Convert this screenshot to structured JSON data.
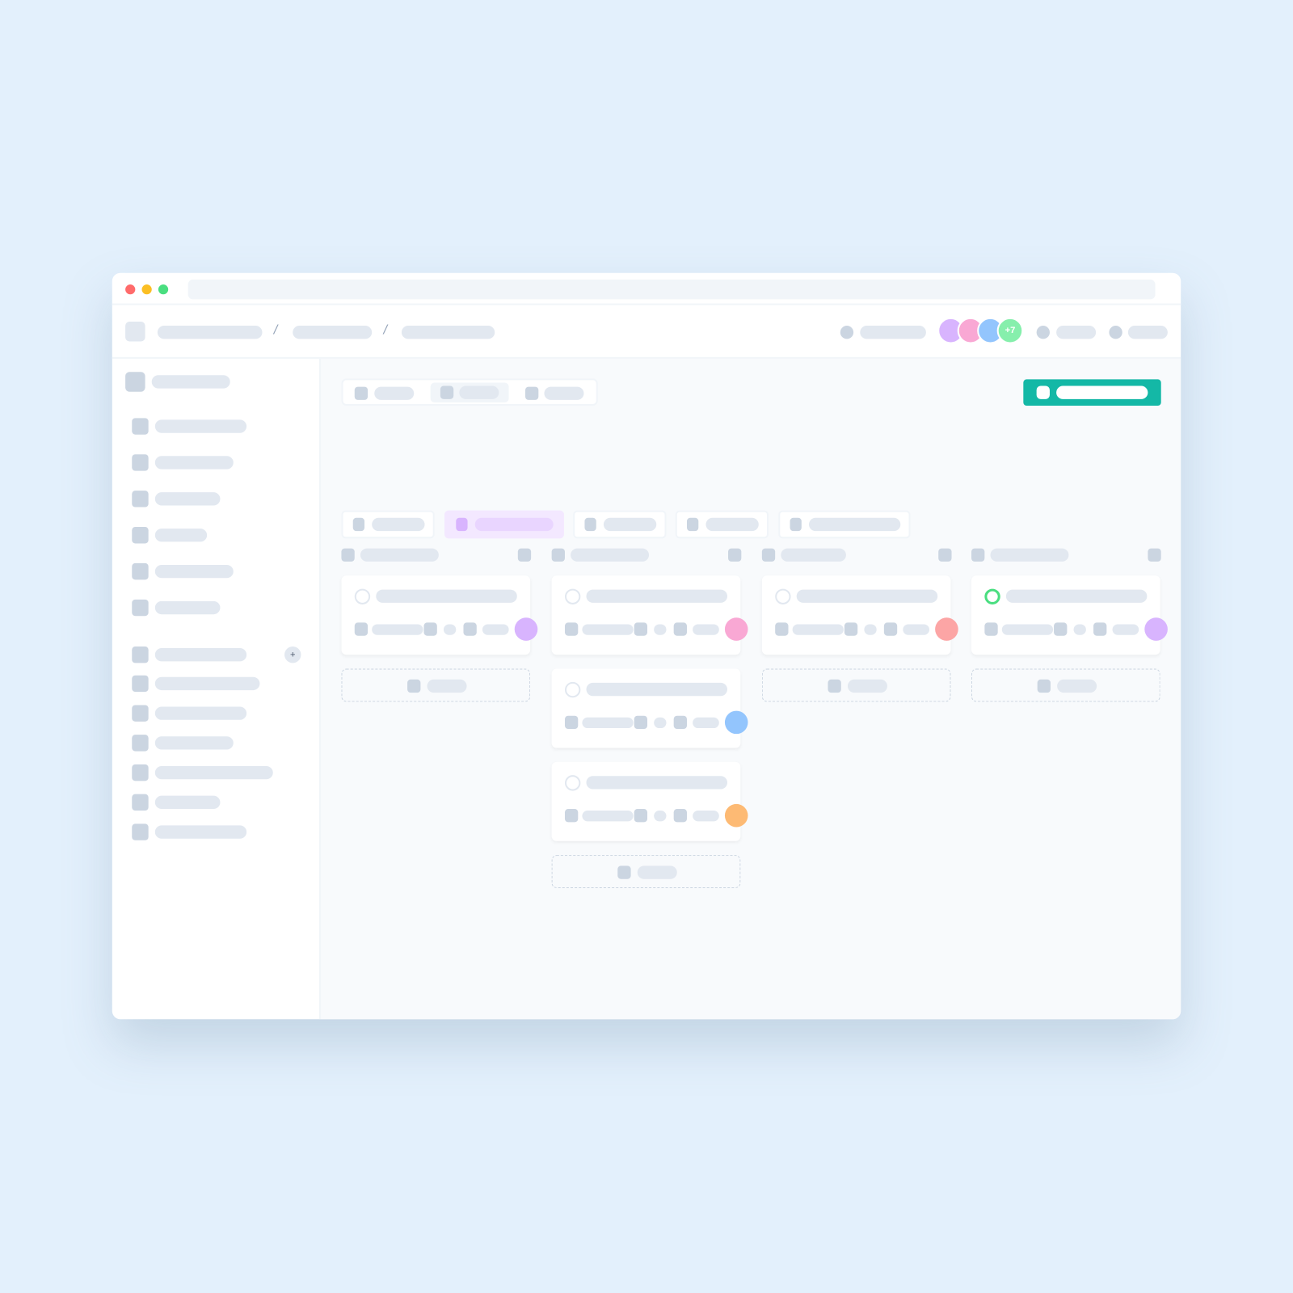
{
  "breadcrumb": {
    "separators": [
      "/",
      "/"
    ]
  },
  "header": {
    "avatar_overflow": "+7",
    "avatar_colors": [
      "#d8b4fe",
      "#f9a8d4",
      "#93c5fd",
      "#86efac"
    ]
  },
  "sidebar": {
    "section_add_label": "+",
    "active_index": 1
  },
  "window_controls": {
    "colors": [
      "#ff6b6b",
      "#fbbf24",
      "#4ade80"
    ]
  },
  "colors": {
    "accent": "#14b8a6",
    "active_filter": "#f3e8ff",
    "active_nav": "#ccfbf1",
    "done": "#4ade80"
  },
  "board": {
    "columns": [
      {
        "cards": [
          {
            "avatar_color": "#d8b4fe",
            "done": false
          }
        ],
        "has_add": true
      },
      {
        "cards": [
          {
            "avatar_color": "#f9a8d4",
            "done": false
          },
          {
            "avatar_color": "#93c5fd",
            "done": false
          },
          {
            "avatar_color": "#fdba74",
            "done": false
          }
        ],
        "has_add": true
      },
      {
        "cards": [
          {
            "avatar_color": "#fca5a5",
            "done": false
          }
        ],
        "has_add": true
      },
      {
        "cards": [
          {
            "avatar_color": "#d8b4fe",
            "done": true
          }
        ],
        "has_add": true
      }
    ]
  }
}
